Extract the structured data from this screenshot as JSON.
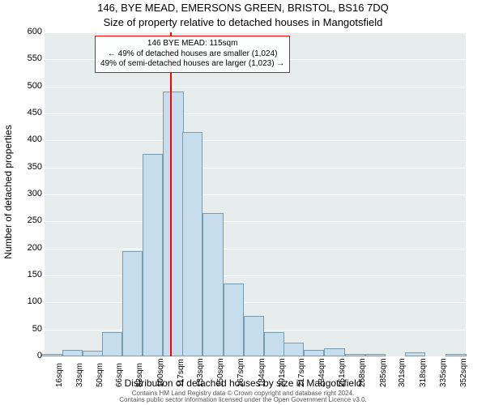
{
  "title_line1": "146, BYE MEAD, EMERSONS GREEN, BRISTOL, BS16 7DQ",
  "title_line2": "Size of property relative to detached houses in Mangotsfield",
  "ylabel": "Number of detached properties",
  "xlabel": "Distribution of detached houses by size in Mangotsfield",
  "footer_line1": "Contains HM Land Registry data © Crown copyright and database right 2024.",
  "footer_line2": "Contains public sector information licensed under the Open Government Licence v3.0.",
  "annot": {
    "line1": "146 BYE MEAD: 115sqm",
    "line2": "← 49% of detached houses are smaller (1,024)",
    "line3": "49% of semi-detached houses are larger (1,023) →"
  },
  "chart": {
    "type": "histogram",
    "plot_bg": "#e7eced",
    "grid_color": "#ffffff",
    "bar_fill": "#c5ddec",
    "bar_border": "#7a9aae",
    "marker_color": "#ff0000",
    "marker_x_value": 115,
    "ylim": [
      0,
      600
    ],
    "ytick_step": 50,
    "xlim": [
      10,
      360
    ],
    "x_tick_labels": [
      "16sqm",
      "33sqm",
      "50sqm",
      "66sqm",
      "83sqm",
      "100sqm",
      "117sqm",
      "133sqm",
      "150sqm",
      "167sqm",
      "184sqm",
      "201sqm",
      "217sqm",
      "234sqm",
      "251sqm",
      "268sqm",
      "285sqm",
      "301sqm",
      "318sqm",
      "335sqm",
      "352sqm"
    ],
    "x_tick_values": [
      16,
      33,
      50,
      66,
      83,
      100,
      117,
      133,
      150,
      167,
      184,
      201,
      217,
      234,
      251,
      268,
      285,
      301,
      318,
      335,
      352
    ],
    "bin_width": 17,
    "bars": [
      {
        "x": 16,
        "y": 5
      },
      {
        "x": 33,
        "y": 12
      },
      {
        "x": 50,
        "y": 10
      },
      {
        "x": 66,
        "y": 45
      },
      {
        "x": 83,
        "y": 195
      },
      {
        "x": 100,
        "y": 375
      },
      {
        "x": 117,
        "y": 490
      },
      {
        "x": 133,
        "y": 415
      },
      {
        "x": 150,
        "y": 265
      },
      {
        "x": 167,
        "y": 135
      },
      {
        "x": 184,
        "y": 75
      },
      {
        "x": 201,
        "y": 45
      },
      {
        "x": 217,
        "y": 25
      },
      {
        "x": 234,
        "y": 12
      },
      {
        "x": 251,
        "y": 15
      },
      {
        "x": 268,
        "y": 5
      },
      {
        "x": 285,
        "y": 5
      },
      {
        "x": 301,
        "y": 0
      },
      {
        "x": 318,
        "y": 8
      },
      {
        "x": 335,
        "y": 0
      },
      {
        "x": 352,
        "y": 5
      }
    ],
    "tick_fontsize": 11,
    "label_fontsize": 12,
    "title_fontsize": 13,
    "annot_fontsize": 10
  }
}
